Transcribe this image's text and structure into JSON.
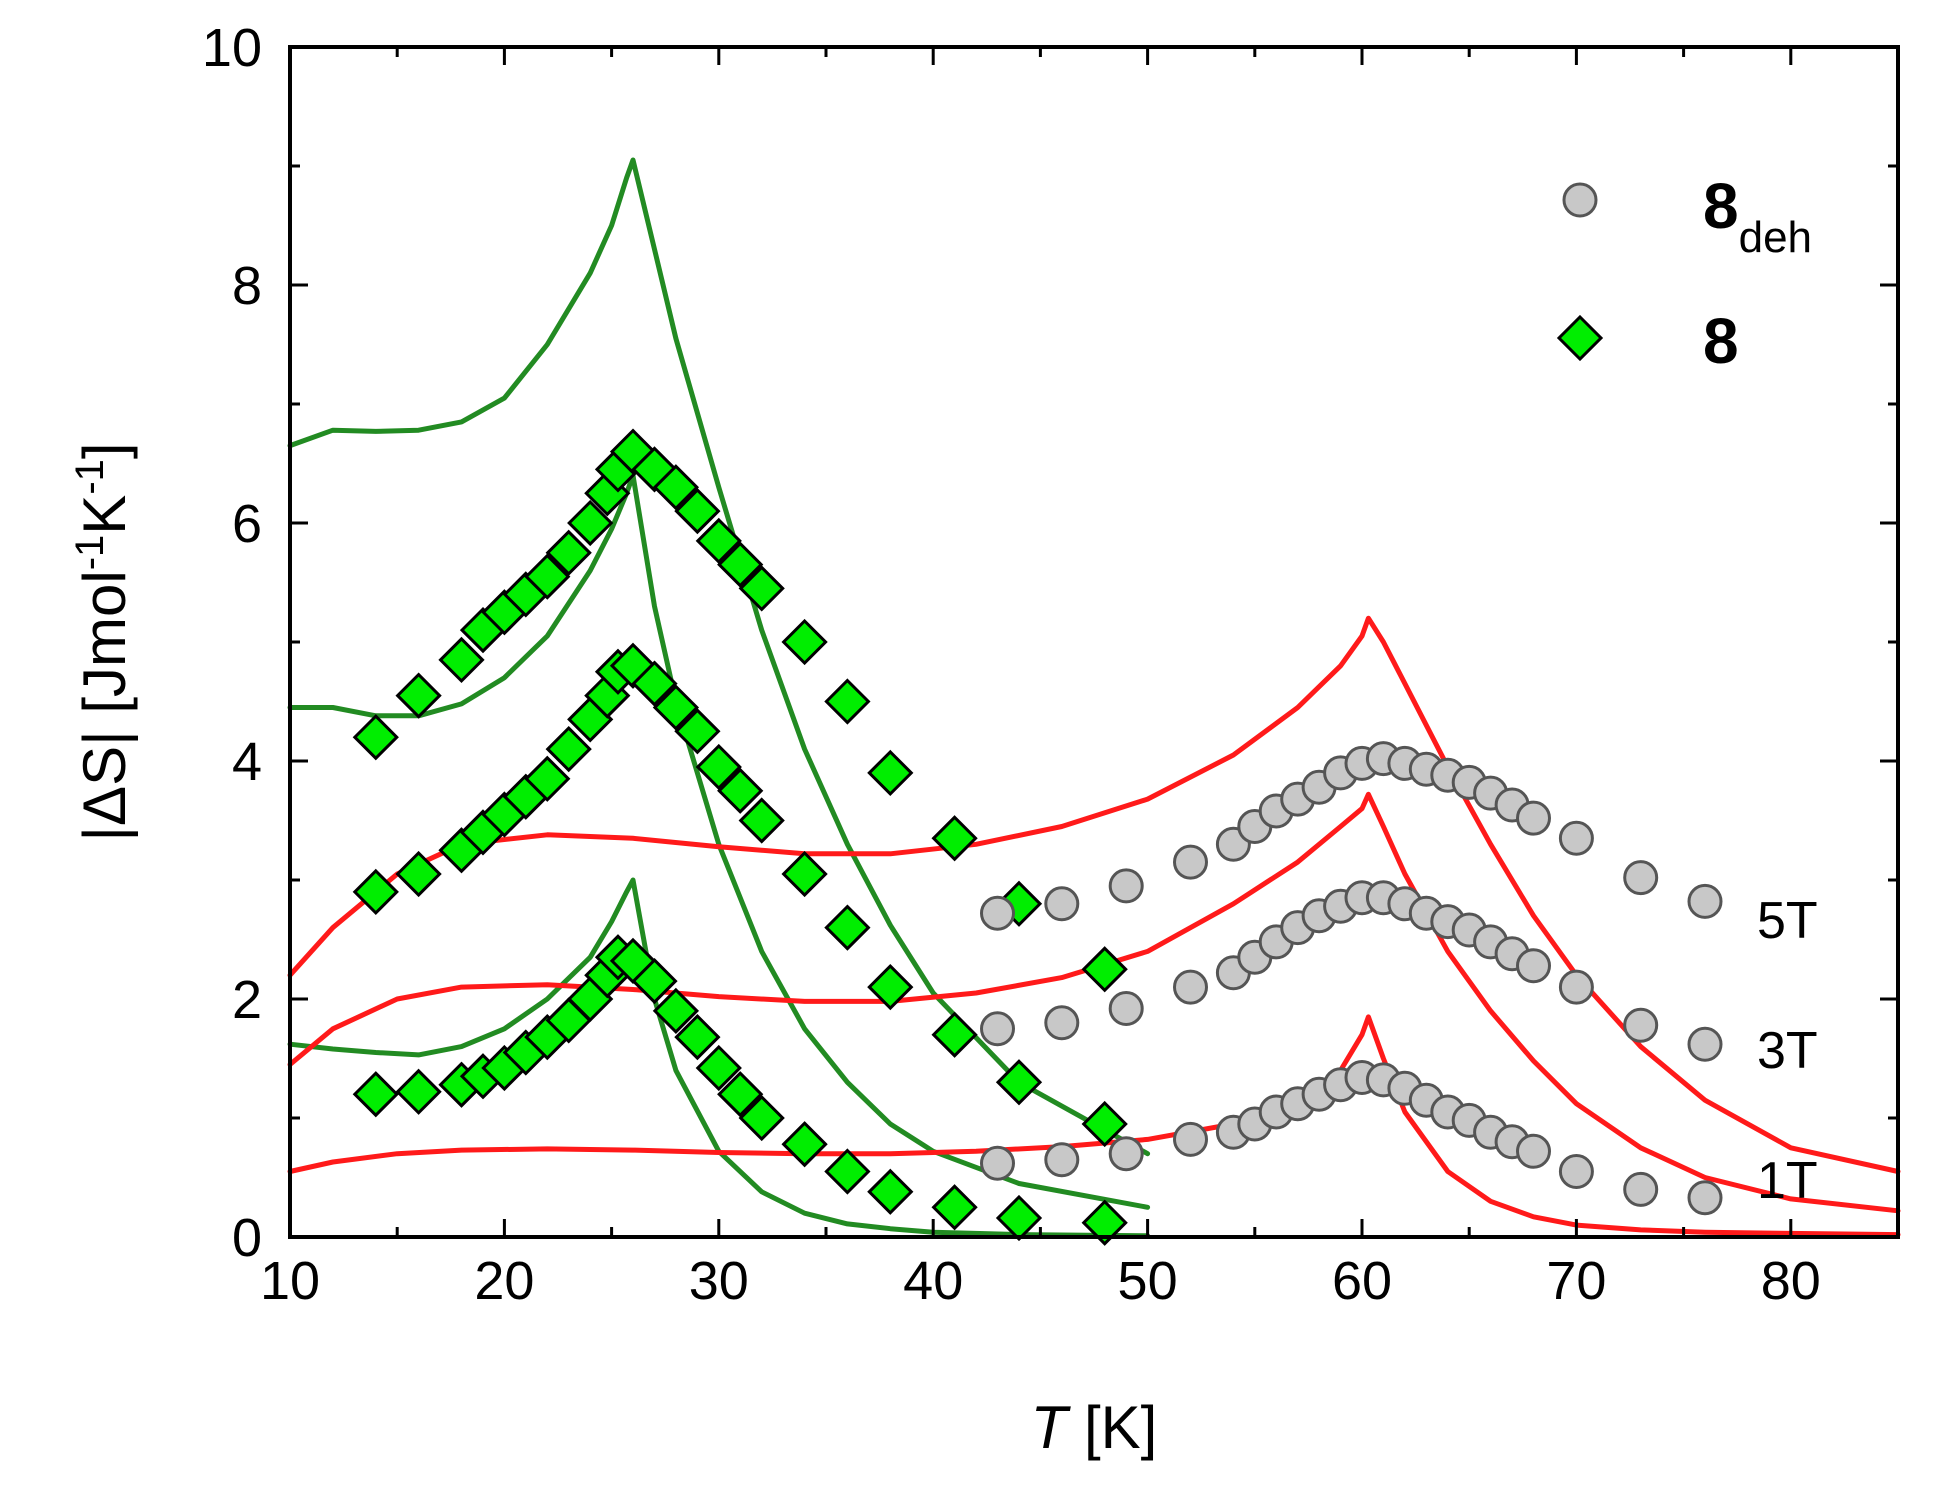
{
  "chart_data": {
    "type": "scatter",
    "xlabel_italic": "T",
    "xlabel_rest": " [K]",
    "ylabel_pre": "|",
    "ylabel_delta": "Δ",
    "ylabel_mid": "S| [Jmol",
    "ylabel_sup1": "-1",
    "ylabel_k": "K",
    "ylabel_sup2": "-1",
    "ylabel_end": "]",
    "xlim": [
      10,
      85
    ],
    "ylim": [
      0,
      10
    ],
    "xticks": [
      10,
      20,
      30,
      40,
      50,
      60,
      70,
      80
    ],
    "yticks": [
      0,
      2,
      4,
      6,
      8,
      10
    ],
    "legend": {
      "placement": "top-right",
      "entries": [
        {
          "name": "8",
          "subscript": "deh",
          "marker": "circle",
          "color": "#c8c8c8"
        },
        {
          "name": "8",
          "subscript": "",
          "marker": "diamond",
          "color": "#00ee00"
        }
      ]
    },
    "field_labels": [
      {
        "text": "5T",
        "x": 81,
        "y": 2.6
      },
      {
        "text": "3T",
        "x": 81,
        "y": 1.5
      },
      {
        "text": "1T",
        "x": 81,
        "y": 0.45
      }
    ],
    "series": [
      {
        "name": "8 5T",
        "marker": "diamond",
        "color": "#00ee00",
        "x": [
          14,
          16,
          18,
          19,
          20,
          21,
          22,
          23,
          24,
          24.8,
          25.3,
          26,
          27,
          28,
          29,
          30,
          31,
          32,
          34,
          36,
          38,
          41,
          44,
          48
        ],
        "y": [
          4.2,
          4.55,
          4.85,
          5.1,
          5.25,
          5.4,
          5.55,
          5.75,
          6.0,
          6.25,
          6.45,
          6.6,
          6.45,
          6.3,
          6.1,
          5.85,
          5.65,
          5.45,
          5.0,
          4.5,
          3.9,
          3.35,
          2.8,
          2.25
        ]
      },
      {
        "name": "8 3T",
        "marker": "diamond",
        "color": "#00ee00",
        "x": [
          14,
          16,
          18,
          19,
          20,
          21,
          22,
          23,
          24,
          24.8,
          25.3,
          26,
          27,
          28,
          29,
          30,
          31,
          32,
          34,
          36,
          38,
          41,
          44,
          48
        ],
        "y": [
          2.9,
          3.05,
          3.25,
          3.4,
          3.55,
          3.7,
          3.85,
          4.1,
          4.35,
          4.55,
          4.75,
          4.8,
          4.65,
          4.45,
          4.25,
          3.95,
          3.75,
          3.5,
          3.05,
          2.6,
          2.1,
          1.7,
          1.3,
          0.95
        ]
      },
      {
        "name": "8 1T",
        "marker": "diamond",
        "color": "#00ee00",
        "x": [
          14,
          16,
          18,
          19,
          20,
          21,
          22,
          23,
          24,
          24.8,
          25.3,
          26,
          27,
          28,
          29,
          30,
          31,
          32,
          34,
          36,
          38,
          41,
          44,
          48
        ],
        "y": [
          1.2,
          1.22,
          1.28,
          1.35,
          1.42,
          1.55,
          1.68,
          1.82,
          2.0,
          2.2,
          2.35,
          2.32,
          2.15,
          1.9,
          1.68,
          1.42,
          1.2,
          1.0,
          0.78,
          0.55,
          0.38,
          0.25,
          0.16,
          0.12
        ]
      },
      {
        "name": "8deh 5T",
        "marker": "circle",
        "color": "#c8c8c8",
        "x": [
          43,
          46,
          49,
          52,
          54,
          55,
          56,
          57,
          58,
          59,
          60,
          61,
          62,
          63,
          64,
          65,
          66,
          67,
          68,
          70,
          73,
          76
        ],
        "y": [
          2.72,
          2.8,
          2.95,
          3.15,
          3.3,
          3.45,
          3.58,
          3.68,
          3.78,
          3.9,
          3.98,
          4.02,
          3.98,
          3.93,
          3.88,
          3.82,
          3.73,
          3.63,
          3.52,
          3.35,
          3.02,
          2.82
        ]
      },
      {
        "name": "8deh 3T",
        "marker": "circle",
        "color": "#c8c8c8",
        "x": [
          43,
          46,
          49,
          52,
          54,
          55,
          56,
          57,
          58,
          59,
          60,
          61,
          62,
          63,
          64,
          65,
          66,
          67,
          68,
          70,
          73,
          76
        ],
        "y": [
          1.75,
          1.8,
          1.92,
          2.1,
          2.22,
          2.35,
          2.48,
          2.6,
          2.7,
          2.78,
          2.85,
          2.85,
          2.8,
          2.72,
          2.65,
          2.58,
          2.48,
          2.38,
          2.28,
          2.1,
          1.78,
          1.62
        ]
      },
      {
        "name": "8deh 1T",
        "marker": "circle",
        "color": "#c8c8c8",
        "x": [
          43,
          46,
          49,
          52,
          54,
          55,
          56,
          57,
          58,
          59,
          60,
          61,
          62,
          63,
          64,
          65,
          66,
          67,
          68,
          70,
          73,
          76
        ],
        "y": [
          0.62,
          0.65,
          0.7,
          0.82,
          0.88,
          0.95,
          1.05,
          1.12,
          1.2,
          1.28,
          1.34,
          1.32,
          1.25,
          1.15,
          1.05,
          0.98,
          0.88,
          0.8,
          0.72,
          0.55,
          0.4,
          0.33
        ]
      },
      {
        "name": "8 fit 5T",
        "marker": "line",
        "color": "#228b22",
        "x": [
          10,
          12,
          14,
          16,
          18,
          20,
          22,
          24,
          25,
          25.7,
          26,
          27,
          28,
          30,
          32,
          34,
          36,
          38,
          40,
          44,
          50
        ],
        "y": [
          6.65,
          6.78,
          6.77,
          6.78,
          6.85,
          7.05,
          7.5,
          8.1,
          8.5,
          8.9,
          9.05,
          8.3,
          7.55,
          6.3,
          5.1,
          4.1,
          3.3,
          2.62,
          2.05,
          1.3,
          0.7
        ]
      },
      {
        "name": "8 fit 3T",
        "marker": "line",
        "color": "#228b22",
        "x": [
          10,
          12,
          14,
          16,
          18,
          20,
          22,
          24,
          25,
          25.7,
          26,
          27,
          28,
          30,
          32,
          34,
          36,
          38,
          40,
          44,
          50
        ],
        "y": [
          4.45,
          4.45,
          4.38,
          4.38,
          4.48,
          4.7,
          5.05,
          5.6,
          5.95,
          6.25,
          6.4,
          5.3,
          4.5,
          3.3,
          2.4,
          1.75,
          1.3,
          0.95,
          0.72,
          0.45,
          0.25
        ]
      },
      {
        "name": "8 fit 1T",
        "marker": "line",
        "color": "#228b22",
        "x": [
          10,
          12,
          14,
          16,
          18,
          20,
          22,
          24,
          25,
          25.7,
          26,
          27,
          28,
          30,
          32,
          34,
          36,
          38,
          40,
          44,
          50
        ],
        "y": [
          1.62,
          1.58,
          1.55,
          1.53,
          1.6,
          1.75,
          2.0,
          2.35,
          2.65,
          2.9,
          3.0,
          2.0,
          1.4,
          0.72,
          0.38,
          0.2,
          0.11,
          0.07,
          0.04,
          0.02,
          0.01
        ]
      },
      {
        "name": "8deh fit 5T",
        "marker": "line",
        "color": "#ff1a1a",
        "x": [
          10,
          12,
          15,
          18,
          22,
          26,
          30,
          34,
          38,
          42,
          46,
          50,
          54,
          57,
          59,
          60,
          60.3,
          61,
          62,
          64,
          66,
          68,
          70,
          73,
          76,
          80,
          85
        ],
        "y": [
          2.2,
          2.6,
          3.05,
          3.3,
          3.38,
          3.35,
          3.28,
          3.22,
          3.22,
          3.3,
          3.45,
          3.68,
          4.05,
          4.45,
          4.8,
          5.05,
          5.2,
          5.0,
          4.65,
          3.95,
          3.3,
          2.7,
          2.2,
          1.6,
          1.15,
          0.75,
          0.55
        ]
      },
      {
        "name": "8deh fit 3T",
        "marker": "line",
        "color": "#ff1a1a",
        "x": [
          10,
          12,
          15,
          18,
          22,
          26,
          30,
          34,
          38,
          42,
          46,
          50,
          54,
          57,
          59,
          60,
          60.3,
          61,
          62,
          64,
          66,
          68,
          70,
          73,
          76,
          80,
          85
        ],
        "y": [
          1.45,
          1.75,
          2.0,
          2.1,
          2.12,
          2.08,
          2.02,
          1.98,
          1.98,
          2.05,
          2.18,
          2.4,
          2.8,
          3.15,
          3.45,
          3.6,
          3.72,
          3.45,
          3.05,
          2.4,
          1.9,
          1.48,
          1.12,
          0.75,
          0.5,
          0.32,
          0.22
        ]
      },
      {
        "name": "8deh fit 1T",
        "marker": "line",
        "color": "#ff1a1a",
        "x": [
          10,
          12,
          15,
          18,
          22,
          26,
          30,
          34,
          38,
          42,
          46,
          50,
          54,
          57,
          59,
          60,
          60.3,
          61,
          62,
          64,
          66,
          68,
          70,
          73,
          76,
          80,
          85
        ],
        "y": [
          0.55,
          0.63,
          0.7,
          0.73,
          0.74,
          0.73,
          0.71,
          0.7,
          0.7,
          0.72,
          0.76,
          0.82,
          0.95,
          1.15,
          1.4,
          1.7,
          1.85,
          1.5,
          1.05,
          0.55,
          0.3,
          0.17,
          0.1,
          0.06,
          0.04,
          0.03,
          0.02
        ]
      }
    ]
  }
}
